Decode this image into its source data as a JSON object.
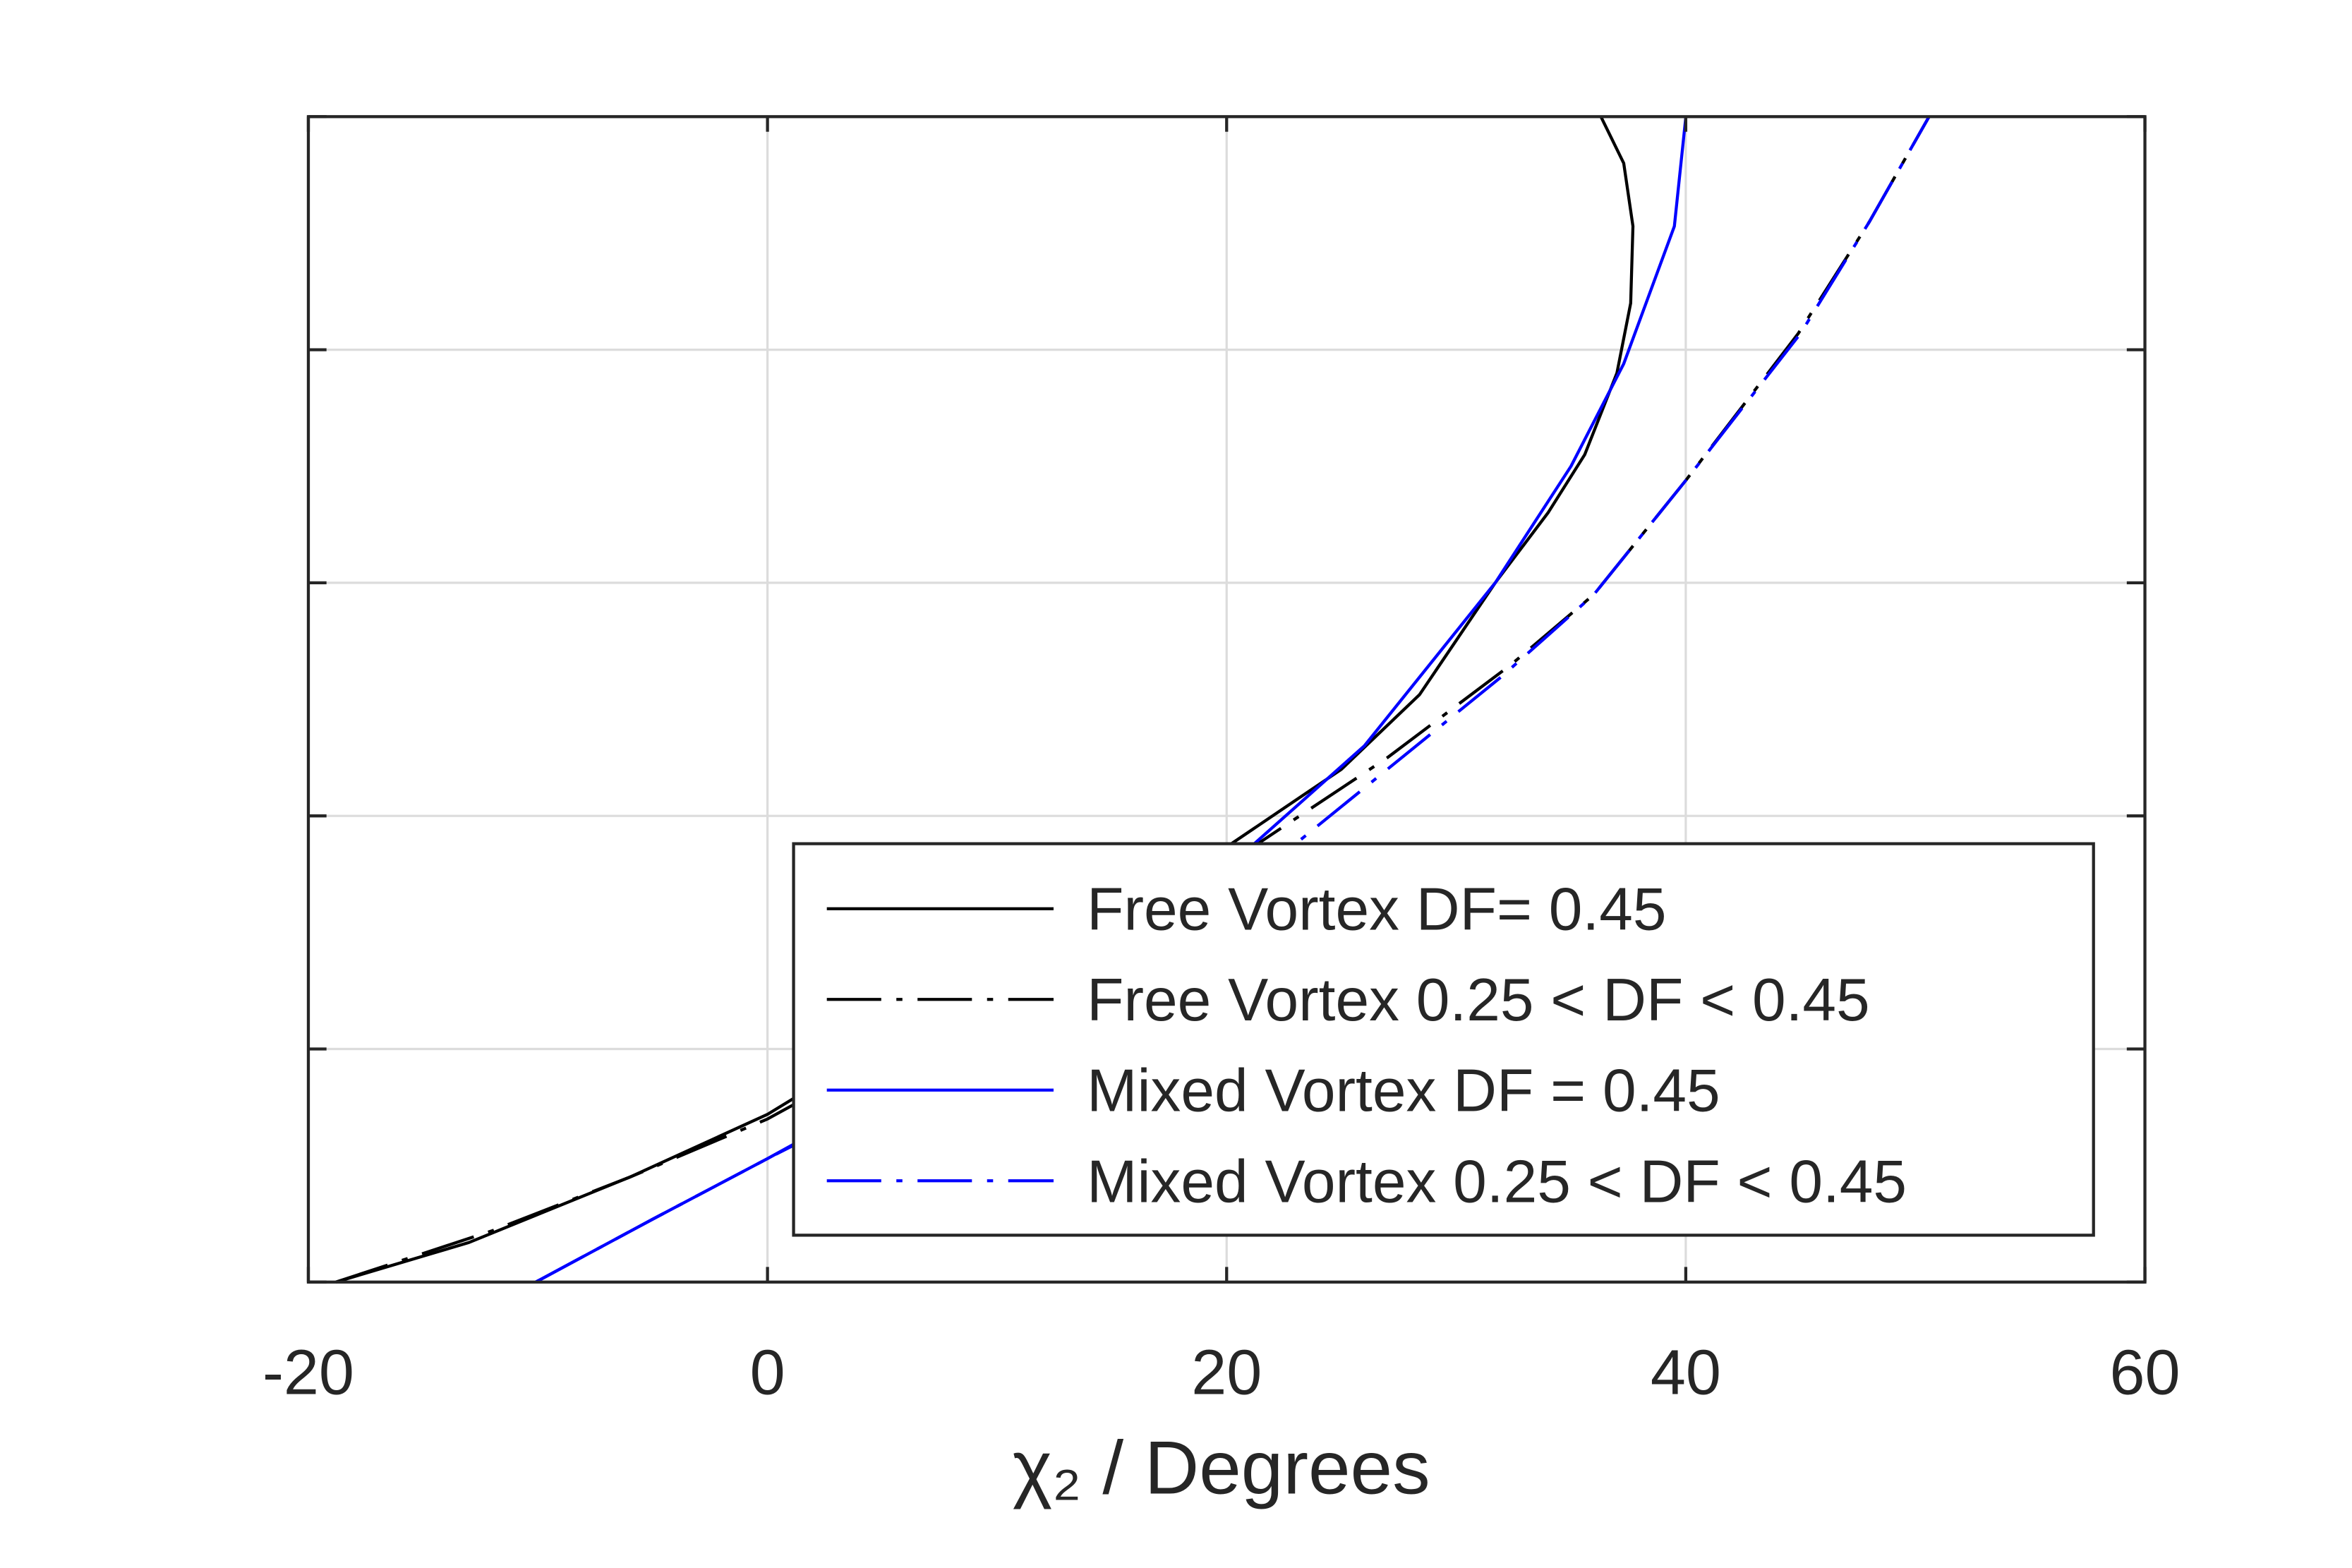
{
  "chart_data": {
    "type": "line",
    "xlabel": "χ₂ / Degrees",
    "xlim": [
      -20,
      60
    ],
    "xticks": [
      -20,
      0,
      20,
      40,
      60
    ],
    "ylim": [
      0,
      5
    ],
    "yticks": [
      0,
      1,
      2,
      3,
      4,
      5
    ],
    "grid": true,
    "legend": "lower right",
    "series": [
      {
        "name": "Free Vortex DF= 0.45",
        "color": "#000000",
        "line_style": "solid",
        "x": [
          -18.8,
          -13,
          -6,
          0,
          5,
          10,
          15,
          20.2,
          25,
          28.4,
          31.7,
          34,
          35.6,
          37,
          37.6,
          37.7,
          37.3,
          36.3
        ],
        "values": [
          0,
          0.17,
          0.45,
          0.72,
          1.02,
          1.33,
          1.6,
          1.88,
          2.2,
          2.52,
          3.0,
          3.3,
          3.55,
          3.9,
          4.2,
          4.53,
          4.8,
          5
        ]
      },
      {
        "name": "Free Vortex 0.25 < DF < 0.45",
        "color": "#000000",
        "line_style": "dashdot",
        "x": [
          -18.8,
          -12,
          -6,
          0,
          5,
          10,
          15,
          21.2,
          27,
          32.4,
          36,
          40,
          44.9,
          48,
          50.6
        ],
        "values": [
          0,
          0.22,
          0.45,
          0.7,
          0.97,
          1.25,
          1.5,
          1.87,
          2.25,
          2.65,
          2.95,
          3.44,
          4.07,
          4.55,
          5
        ]
      },
      {
        "name": "Mixed Vortex DF = 0.45",
        "color": "#0000ff",
        "line_style": "solid",
        "x": [
          -10.1,
          -5,
          0,
          5,
          10,
          15,
          21.2,
          26,
          31.7,
          35,
          37.3,
          39.5,
          40
        ],
        "values": [
          0,
          0.27,
          0.53,
          0.8,
          1.1,
          1.4,
          1.88,
          2.3,
          3.0,
          3.5,
          3.94,
          4.53,
          5
        ]
      },
      {
        "name": "Mixed Vortex 0.25 < DF < 0.45",
        "color": "#0000ff",
        "line_style": "dashdot",
        "x": [
          -10.1,
          -5,
          0,
          5,
          10,
          15,
          22,
          27,
          32,
          36,
          40,
          45,
          48,
          50.6
        ],
        "values": [
          0,
          0.27,
          0.53,
          0.78,
          1.05,
          1.32,
          1.8,
          2.2,
          2.6,
          2.95,
          3.44,
          4.07,
          4.55,
          5
        ]
      }
    ]
  }
}
